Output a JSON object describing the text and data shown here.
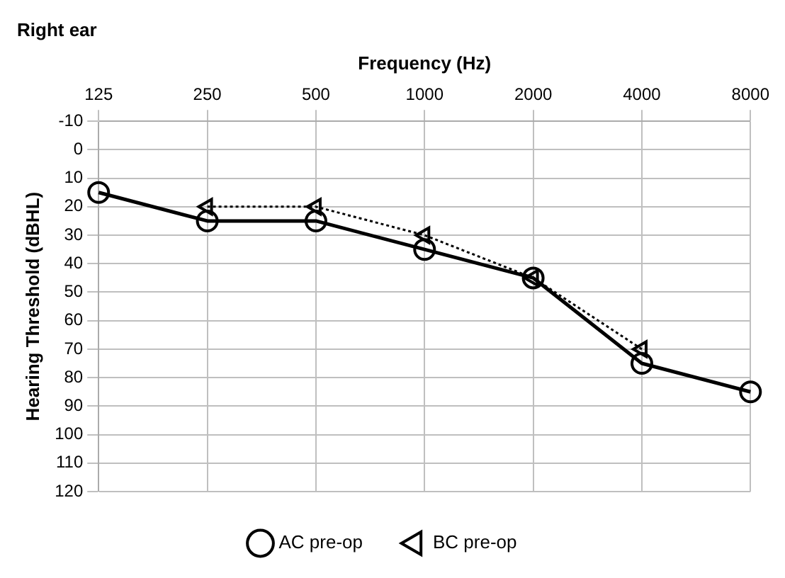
{
  "chart_data": {
    "type": "line",
    "title": "Right ear",
    "xlabel": "Frequency (Hz)",
    "ylabel": "Hearing Threshold (dBHL)",
    "categories": [
      "125",
      "250",
      "500",
      "1000",
      "2000",
      "4000",
      "8000"
    ],
    "series": [
      {
        "name": "AC pre-op",
        "color": "#000000",
        "values": [
          15,
          25,
          25,
          35,
          45,
          75,
          85
        ],
        "marker": "circle",
        "line_style": "solid"
      },
      {
        "name": "BC pre-op",
        "color": "#000000",
        "values": [
          null,
          20,
          20,
          30,
          45,
          70,
          null
        ],
        "marker": "triangle",
        "line_style": "dotted"
      }
    ],
    "ylim": [
      120,
      -10
    ],
    "yticks": [
      -10,
      0,
      10,
      20,
      30,
      40,
      50,
      60,
      70,
      80,
      90,
      100,
      110,
      120
    ],
    "grid": true,
    "legend": "bottom"
  }
}
